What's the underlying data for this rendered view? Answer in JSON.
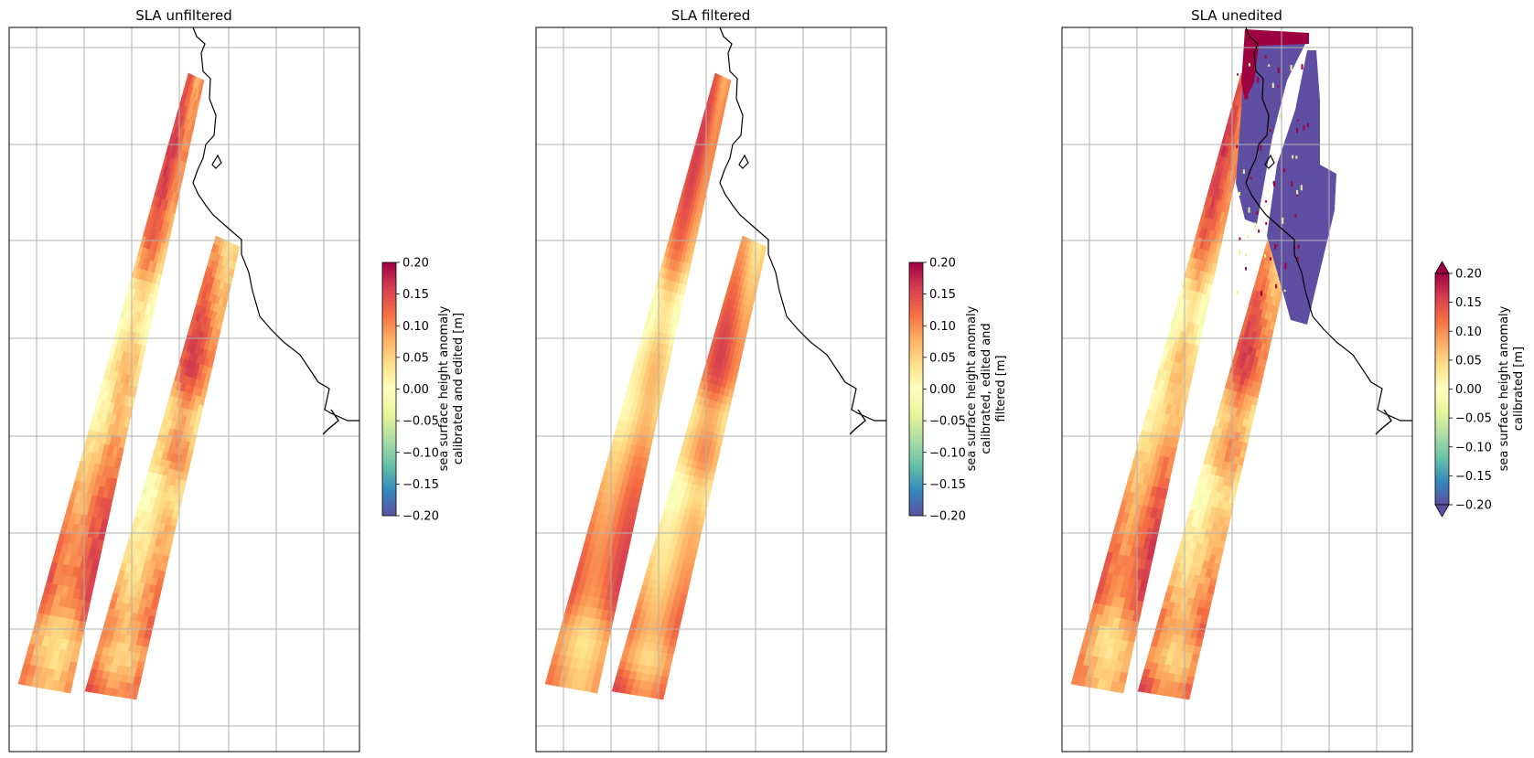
{
  "chart_data": [
    {
      "type": "heatmap",
      "title": "SLA unfiltered",
      "colorbar": {
        "label": [
          "sea surface height anomaly",
          "calibrated and edited [m]"
        ],
        "vmin": -0.2,
        "vmax": 0.2,
        "ticks": [
          "0.20",
          "0.15",
          "0.10",
          "0.05",
          "0.00",
          "−0.05",
          "−0.10",
          "−0.15",
          "−0.20"
        ],
        "extend": "neither",
        "colormap": "Spectral_r"
      },
      "field": "smooth-noisy",
      "masked_edits": false
    },
    {
      "type": "heatmap",
      "title": "SLA filtered",
      "colorbar": {
        "label": [
          "sea surface height anomaly",
          "calibrated, edited and",
          "filtered [m]"
        ],
        "vmin": -0.2,
        "vmax": 0.2,
        "ticks": [
          "0.20",
          "0.15",
          "0.10",
          "0.05",
          "0.00",
          "−0.05",
          "−0.10",
          "−0.15",
          "−0.20"
        ],
        "extend": "neither",
        "colormap": "Spectral_r"
      },
      "field": "smooth",
      "masked_edits": false
    },
    {
      "type": "heatmap",
      "title": "SLA unedited",
      "colorbar": {
        "label": [
          "sea surface height anomaly",
          "calibrated [m]"
        ],
        "vmin": -0.2,
        "vmax": 0.2,
        "ticks": [
          "0.20",
          "0.15",
          "0.10",
          "0.05",
          "0.00",
          "−0.05",
          "−0.10",
          "−0.15",
          "−0.20"
        ],
        "extend": "both",
        "colormap": "Spectral_r"
      },
      "field": "smooth-noisy",
      "masked_edits": true
    }
  ],
  "colors": {
    "colormap": [
      "#5e4fa2",
      "#3288bd",
      "#66c2a5",
      "#abdda4",
      "#e6f598",
      "#ffffbf",
      "#fee08b",
      "#fdae61",
      "#f46d43",
      "#d53e4f",
      "#9e0142"
    ],
    "grid": "#b0b0b0",
    "coastline": "#000000"
  }
}
